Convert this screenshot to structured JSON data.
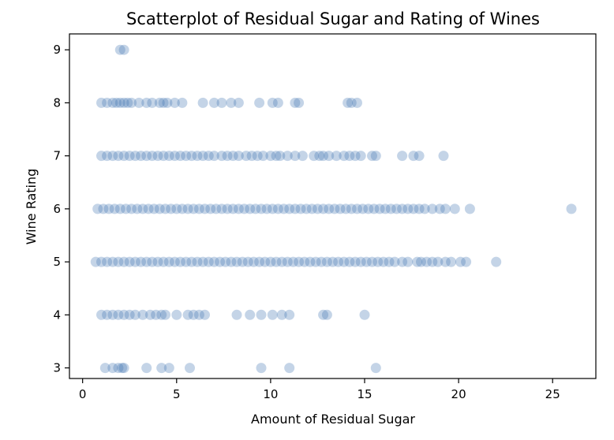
{
  "chart_data": {
    "type": "scatter",
    "title": "Scatterplot of Residual Sugar and Rating of Wines",
    "xlabel": "Amount of Residual Sugar",
    "ylabel": "Wine Rating",
    "xlim": [
      -0.7,
      27.3
    ],
    "ylim": [
      2.8,
      9.3
    ],
    "xticks": [
      0,
      5,
      10,
      15,
      20,
      25
    ],
    "yticks": [
      3,
      4,
      5,
      6,
      7,
      8,
      9
    ],
    "grid": false,
    "legend": "none",
    "marker_color": "#3a70b0",
    "marker_alpha": 0.3,
    "series": [
      {
        "points": [
          [
            2.0,
            9
          ],
          [
            2.2,
            9
          ],
          [
            1.0,
            8
          ],
          [
            1.3,
            8
          ],
          [
            1.6,
            8
          ],
          [
            1.8,
            8
          ],
          [
            2.0,
            8
          ],
          [
            2.2,
            8
          ],
          [
            2.4,
            8
          ],
          [
            2.6,
            8
          ],
          [
            3.0,
            8
          ],
          [
            3.4,
            8
          ],
          [
            3.7,
            8
          ],
          [
            4.1,
            8
          ],
          [
            4.3,
            8
          ],
          [
            4.5,
            8
          ],
          [
            4.9,
            8
          ],
          [
            5.3,
            8
          ],
          [
            6.4,
            8
          ],
          [
            7.0,
            8
          ],
          [
            7.4,
            8
          ],
          [
            7.9,
            8
          ],
          [
            8.3,
            8
          ],
          [
            9.4,
            8
          ],
          [
            10.1,
            8
          ],
          [
            10.4,
            8
          ],
          [
            11.3,
            8
          ],
          [
            11.5,
            8
          ],
          [
            14.1,
            8
          ],
          [
            14.3,
            8
          ],
          [
            14.6,
            8
          ],
          [
            0.7,
            5
          ],
          [
            1.0,
            5
          ],
          [
            1.3,
            5
          ],
          [
            1.6,
            5
          ],
          [
            1.9,
            5
          ],
          [
            2.2,
            5
          ],
          [
            2.5,
            5
          ],
          [
            2.8,
            5
          ],
          [
            3.1,
            5
          ],
          [
            3.4,
            5
          ],
          [
            3.7,
            5
          ],
          [
            4.0,
            5
          ],
          [
            4.3,
            5
          ],
          [
            4.6,
            5
          ],
          [
            4.9,
            5
          ],
          [
            5.2,
            5
          ],
          [
            5.5,
            5
          ],
          [
            5.8,
            5
          ],
          [
            6.1,
            5
          ],
          [
            6.4,
            5
          ],
          [
            6.7,
            5
          ],
          [
            7.0,
            5
          ],
          [
            7.3,
            5
          ],
          [
            7.6,
            5
          ],
          [
            7.9,
            5
          ],
          [
            8.2,
            5
          ],
          [
            8.5,
            5
          ],
          [
            8.8,
            5
          ],
          [
            9.1,
            5
          ],
          [
            9.4,
            5
          ],
          [
            9.7,
            5
          ],
          [
            10.0,
            5
          ],
          [
            10.3,
            5
          ],
          [
            10.6,
            5
          ],
          [
            10.9,
            5
          ],
          [
            11.2,
            5
          ],
          [
            11.5,
            5
          ],
          [
            11.8,
            5
          ],
          [
            12.1,
            5
          ],
          [
            12.4,
            5
          ],
          [
            12.7,
            5
          ],
          [
            13.0,
            5
          ],
          [
            13.3,
            5
          ],
          [
            13.6,
            5
          ],
          [
            13.9,
            5
          ],
          [
            14.2,
            5
          ],
          [
            14.5,
            5
          ],
          [
            14.8,
            5
          ],
          [
            15.1,
            5
          ],
          [
            15.4,
            5
          ],
          [
            15.7,
            5
          ],
          [
            16.0,
            5
          ],
          [
            16.3,
            5
          ],
          [
            16.6,
            5
          ],
          [
            17.0,
            5
          ],
          [
            17.3,
            5
          ],
          [
            17.8,
            5
          ],
          [
            18.0,
            5
          ],
          [
            18.3,
            5
          ],
          [
            18.6,
            5
          ],
          [
            18.9,
            5
          ],
          [
            19.3,
            5
          ],
          [
            19.6,
            5
          ],
          [
            20.1,
            5
          ],
          [
            20.4,
            5
          ],
          [
            22.0,
            5
          ],
          [
            0.8,
            6
          ],
          [
            1.1,
            6
          ],
          [
            1.4,
            6
          ],
          [
            1.7,
            6
          ],
          [
            2.0,
            6
          ],
          [
            2.3,
            6
          ],
          [
            2.6,
            6
          ],
          [
            2.9,
            6
          ],
          [
            3.2,
            6
          ],
          [
            3.5,
            6
          ],
          [
            3.8,
            6
          ],
          [
            4.1,
            6
          ],
          [
            4.4,
            6
          ],
          [
            4.7,
            6
          ],
          [
            5.0,
            6
          ],
          [
            5.3,
            6
          ],
          [
            5.6,
            6
          ],
          [
            5.9,
            6
          ],
          [
            6.2,
            6
          ],
          [
            6.5,
            6
          ],
          [
            6.8,
            6
          ],
          [
            7.1,
            6
          ],
          [
            7.4,
            6
          ],
          [
            7.7,
            6
          ],
          [
            8.0,
            6
          ],
          [
            8.3,
            6
          ],
          [
            8.6,
            6
          ],
          [
            8.9,
            6
          ],
          [
            9.2,
            6
          ],
          [
            9.5,
            6
          ],
          [
            9.8,
            6
          ],
          [
            10.1,
            6
          ],
          [
            10.4,
            6
          ],
          [
            10.7,
            6
          ],
          [
            11.0,
            6
          ],
          [
            11.3,
            6
          ],
          [
            11.6,
            6
          ],
          [
            11.9,
            6
          ],
          [
            12.2,
            6
          ],
          [
            12.5,
            6
          ],
          [
            12.8,
            6
          ],
          [
            13.1,
            6
          ],
          [
            13.4,
            6
          ],
          [
            13.7,
            6
          ],
          [
            14.0,
            6
          ],
          [
            14.3,
            6
          ],
          [
            14.6,
            6
          ],
          [
            14.9,
            6
          ],
          [
            15.2,
            6
          ],
          [
            15.5,
            6
          ],
          [
            15.8,
            6
          ],
          [
            16.1,
            6
          ],
          [
            16.4,
            6
          ],
          [
            16.7,
            6
          ],
          [
            17.0,
            6
          ],
          [
            17.3,
            6
          ],
          [
            17.6,
            6
          ],
          [
            17.9,
            6
          ],
          [
            18.2,
            6
          ],
          [
            18.6,
            6
          ],
          [
            19.0,
            6
          ],
          [
            19.3,
            6
          ],
          [
            19.8,
            6
          ],
          [
            20.6,
            6
          ],
          [
            26.0,
            6
          ],
          [
            1.0,
            7
          ],
          [
            1.3,
            7
          ],
          [
            1.6,
            7
          ],
          [
            1.9,
            7
          ],
          [
            2.2,
            7
          ],
          [
            2.5,
            7
          ],
          [
            2.8,
            7
          ],
          [
            3.1,
            7
          ],
          [
            3.4,
            7
          ],
          [
            3.7,
            7
          ],
          [
            4.0,
            7
          ],
          [
            4.3,
            7
          ],
          [
            4.6,
            7
          ],
          [
            4.9,
            7
          ],
          [
            5.2,
            7
          ],
          [
            5.5,
            7
          ],
          [
            5.8,
            7
          ],
          [
            6.1,
            7
          ],
          [
            6.4,
            7
          ],
          [
            6.7,
            7
          ],
          [
            7.0,
            7
          ],
          [
            7.4,
            7
          ],
          [
            7.7,
            7
          ],
          [
            8.0,
            7
          ],
          [
            8.3,
            7
          ],
          [
            8.7,
            7
          ],
          [
            9.0,
            7
          ],
          [
            9.3,
            7
          ],
          [
            9.6,
            7
          ],
          [
            10.0,
            7
          ],
          [
            10.3,
            7
          ],
          [
            10.5,
            7
          ],
          [
            10.9,
            7
          ],
          [
            11.3,
            7
          ],
          [
            11.7,
            7
          ],
          [
            12.3,
            7
          ],
          [
            12.6,
            7
          ],
          [
            12.8,
            7
          ],
          [
            13.1,
            7
          ],
          [
            13.5,
            7
          ],
          [
            13.9,
            7
          ],
          [
            14.2,
            7
          ],
          [
            14.5,
            7
          ],
          [
            14.8,
            7
          ],
          [
            15.4,
            7
          ],
          [
            15.6,
            7
          ],
          [
            17.0,
            7
          ],
          [
            17.6,
            7
          ],
          [
            17.9,
            7
          ],
          [
            19.2,
            7
          ],
          [
            1.0,
            4
          ],
          [
            1.3,
            4
          ],
          [
            1.6,
            4
          ],
          [
            1.9,
            4
          ],
          [
            2.2,
            4
          ],
          [
            2.5,
            4
          ],
          [
            2.8,
            4
          ],
          [
            3.2,
            4
          ],
          [
            3.6,
            4
          ],
          [
            3.9,
            4
          ],
          [
            4.2,
            4
          ],
          [
            4.4,
            4
          ],
          [
            5.0,
            4
          ],
          [
            5.6,
            4
          ],
          [
            5.9,
            4
          ],
          [
            6.2,
            4
          ],
          [
            6.5,
            4
          ],
          [
            8.2,
            4
          ],
          [
            8.9,
            4
          ],
          [
            9.5,
            4
          ],
          [
            10.1,
            4
          ],
          [
            10.6,
            4
          ],
          [
            11.0,
            4
          ],
          [
            12.8,
            4
          ],
          [
            13.0,
            4
          ],
          [
            15.0,
            4
          ],
          [
            1.2,
            3
          ],
          [
            1.6,
            3
          ],
          [
            1.9,
            3
          ],
          [
            2.1,
            3
          ],
          [
            2.2,
            3
          ],
          [
            3.4,
            3
          ],
          [
            4.2,
            3
          ],
          [
            4.6,
            3
          ],
          [
            5.7,
            3
          ],
          [
            9.5,
            3
          ],
          [
            11.0,
            3
          ],
          [
            15.6,
            3
          ]
        ]
      }
    ]
  }
}
